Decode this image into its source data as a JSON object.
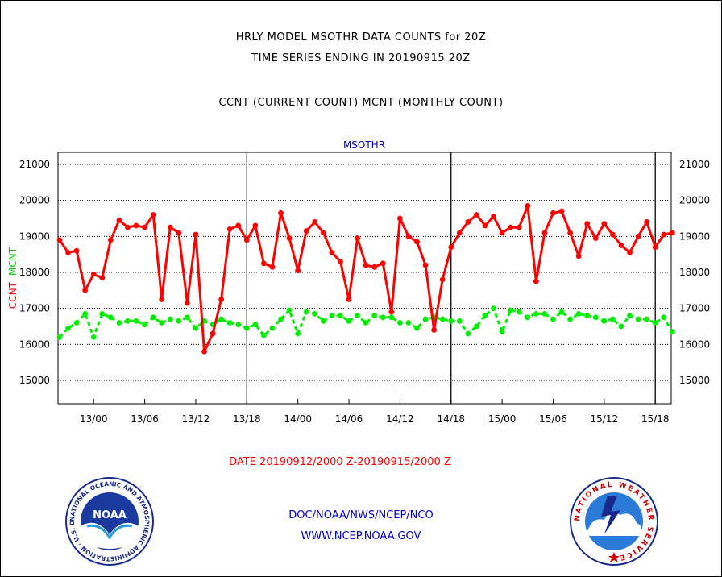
{
  "header": {
    "title_line1": "HRLY MODEL MSOTHR DATA COUNTS for 20Z",
    "title_line2": "TIME SERIES ENDING IN 20190915 20Z",
    "subtitle": "CCNT (CURRENT COUNT) MCNT (MONTHLY COUNT)"
  },
  "footer": {
    "date_range": "DATE 20190912/2000 Z-20190915/2000 Z",
    "org": "DOC/NOAA/NWS/NCEP/NCO",
    "url": "WWW.NCEP.NOAA.GOV"
  },
  "logos": {
    "noaa_text": "NOAA",
    "noaa_ring_text": "NATIONAL OCEANIC AND ATMOSPHERIC ADMINISTRATION · U.S. DEPARTMENT OF COMMERCE ·",
    "nws_ring_text": "NATIONAL WEATHER SERVICE"
  },
  "colors": {
    "ccnt": "#ff0000",
    "mcnt": "#00ee00",
    "label_blue": "#0000cc",
    "date_red": "#ff0000"
  },
  "chart_data": {
    "type": "line",
    "title": "MSOTHR",
    "ylabel_left": [
      "CCNT",
      "MCNT"
    ],
    "ylim": [
      14300,
      21300
    ],
    "yticks": [
      15000,
      16000,
      17000,
      18000,
      19000,
      20000,
      21000
    ],
    "ytick_labels": [
      "15000",
      "16000",
      "17000",
      "18000",
      "19000",
      "20000",
      "21000"
    ],
    "x_unit": "hours since 2019-09-12 20Z",
    "xlim": [
      0,
      72
    ],
    "xticks": [
      4,
      10,
      16,
      22,
      28,
      34,
      40,
      46,
      52,
      58,
      64,
      70
    ],
    "xtick_labels": [
      "13/00",
      "13/06",
      "13/12",
      "13/18",
      "14/00",
      "14/06",
      "14/12",
      "14/18",
      "15/00",
      "15/06",
      "15/12",
      "15/18"
    ],
    "day_dividers": [
      22,
      46,
      70
    ],
    "grid": "horizontal dotted",
    "series": [
      {
        "name": "CCNT",
        "values": [
          18900,
          18550,
          18600,
          17500,
          17950,
          17850,
          18900,
          19450,
          19250,
          19300,
          19250,
          19600,
          17250,
          19250,
          19100,
          17150,
          19050,
          15800,
          16300,
          17250,
          19200,
          19300,
          18900,
          19300,
          18250,
          18150,
          19650,
          18950,
          18050,
          19150,
          19400,
          19100,
          18550,
          18300,
          17250,
          18950,
          18200,
          18150,
          18250,
          16900,
          19500,
          19000,
          18850,
          18200,
          16400,
          17800,
          18700,
          19100,
          19400,
          19600,
          19300,
          19550,
          19100,
          19250,
          19250,
          19850,
          17750,
          19100,
          19650,
          19700,
          19100,
          18450,
          19350,
          18950,
          19350,
          19050,
          18750,
          18550,
          19000,
          19400,
          18700,
          19050,
          19100
        ]
      },
      {
        "name": "MCNT",
        "values": [
          16200,
          16450,
          16600,
          16850,
          16200,
          16850,
          16750,
          16600,
          16650,
          16650,
          16550,
          16750,
          16600,
          16700,
          16650,
          16750,
          16450,
          16650,
          16550,
          16700,
          16600,
          16550,
          16450,
          16550,
          16250,
          16450,
          16700,
          16950,
          16300,
          16900,
          16850,
          16650,
          16800,
          16800,
          16650,
          16800,
          16600,
          16800,
          16750,
          16750,
          16600,
          16600,
          16450,
          16700,
          16750,
          16700,
          16650,
          16650,
          16300,
          16500,
          16800,
          17000,
          16350,
          16950,
          16900,
          16750,
          16850,
          16850,
          16700,
          16900,
          16700,
          16850,
          16800,
          16750,
          16650,
          16700,
          16500,
          16800,
          16700,
          16700,
          16600,
          16750,
          16350
        ]
      }
    ]
  }
}
